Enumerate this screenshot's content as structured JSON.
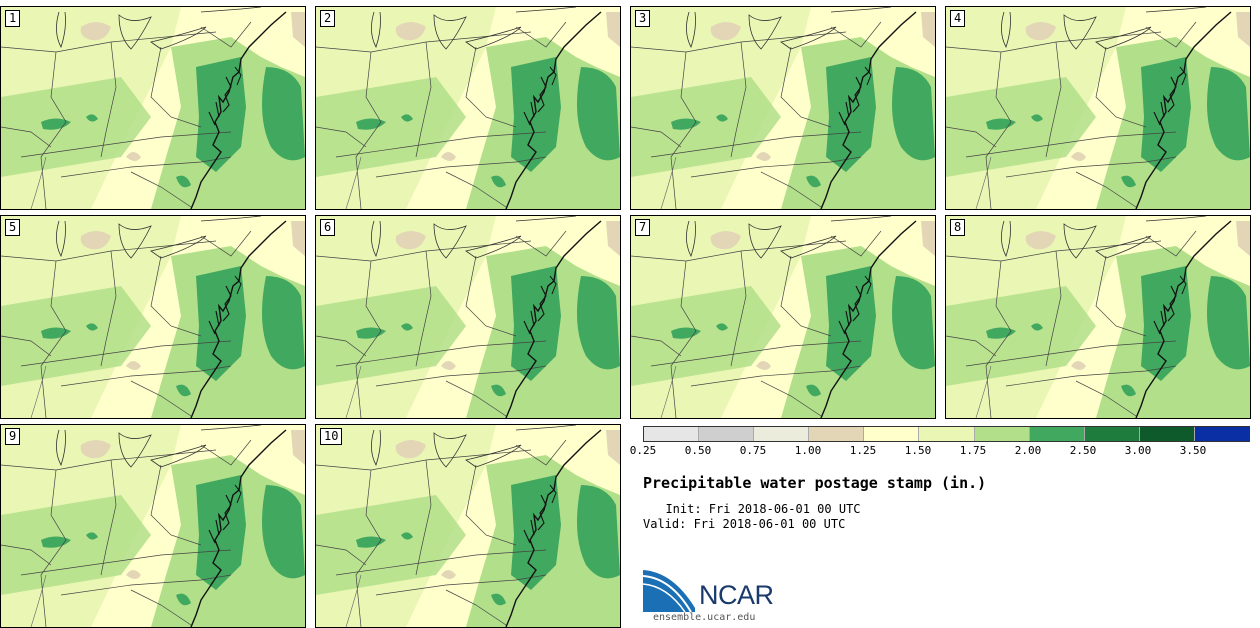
{
  "title": "Precipitable water postage stamp (in.)",
  "init": "  Init: Fri 2018-06-01 00 UTC",
  "valid": "Valid: Fri 2018-06-01 00 UTC",
  "logo": {
    "name": "NCAR",
    "url": "ensemble.ucar.edu"
  },
  "members": [
    "1",
    "2",
    "3",
    "4",
    "5",
    "6",
    "7",
    "8",
    "9",
    "10"
  ],
  "colorbar": {
    "colors": [
      "#e6e6e6",
      "#cfcfcf",
      "#ececdc",
      "#e2d6b6",
      "#ffffcc",
      "#eaf6b4",
      "#b2df8a",
      "#41a85f",
      "#1e7d3c",
      "#0e5a2a",
      "#0a2fa5"
    ],
    "ticks": [
      "0.25",
      "0.50",
      "0.75",
      "1.00",
      "1.25",
      "1.50",
      "1.75",
      "2.00",
      "2.50",
      "3.00",
      "3.50"
    ]
  }
}
